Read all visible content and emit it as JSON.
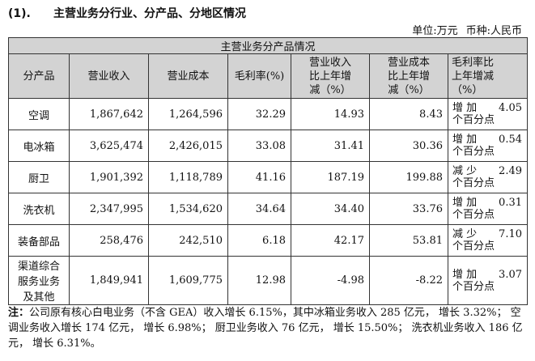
{
  "heading": {
    "number": "(1).",
    "title": "主营业务分行业、分产品、分地区情况"
  },
  "unit_line": {
    "unit": "单位:万元",
    "currency": "币种:人民币"
  },
  "table": {
    "title": "主营业务分产品情况",
    "headers": [
      [
        "分产品"
      ],
      [
        "营业收入"
      ],
      [
        "营业成本"
      ],
      [
        "毛利率(%)"
      ],
      [
        "营业收入",
        "比上年增",
        "减（%）"
      ],
      [
        "营业成本",
        "比上年增",
        "减（%）"
      ],
      [
        "毛利率比",
        "上年增减",
        "（%）"
      ]
    ],
    "rows": [
      {
        "name": [
          "空调"
        ],
        "revenue": "1,867,642",
        "cost": "1,264,596",
        "margin": "32.29",
        "rev_change": "14.93",
        "cost_change": "8.43",
        "margin_change": {
          "direction": "增 加",
          "value": "4.05",
          "unit": "个百分点"
        }
      },
      {
        "name": [
          "电冰箱"
        ],
        "revenue": "3,625,474",
        "cost": "2,426,015",
        "margin": "33.08",
        "rev_change": "31.41",
        "cost_change": "30.36",
        "margin_change": {
          "direction": "增 加",
          "value": "0.54",
          "unit": "个百分点"
        }
      },
      {
        "name": [
          "厨卫"
        ],
        "revenue": "1,901,392",
        "cost": "1,118,789",
        "margin": "41.16",
        "rev_change": "187.19",
        "cost_change": "199.88",
        "margin_change": {
          "direction": "减 少",
          "value": "2.49",
          "unit": "个百分点"
        }
      },
      {
        "name": [
          "洗衣机"
        ],
        "revenue": "2,347,995",
        "cost": "1,534,620",
        "margin": "34.64",
        "rev_change": "34.40",
        "cost_change": "33.76",
        "margin_change": {
          "direction": "增 加",
          "value": "0.31",
          "unit": "个百分点"
        }
      },
      {
        "name": [
          "装备部品"
        ],
        "revenue": "258,476",
        "cost": "242,510",
        "margin": "6.18",
        "rev_change": "42.17",
        "cost_change": "53.81",
        "margin_change": {
          "direction": "减 少",
          "value": "7.10",
          "unit": "个百分点"
        }
      },
      {
        "name": [
          "渠道综合",
          "服务业务",
          "及其他"
        ],
        "revenue": "1,849,941",
        "cost": "1,609,775",
        "margin": "12.98",
        "rev_change": "-4.98",
        "cost_change": "-8.22",
        "margin_change": {
          "direction": "增 加",
          "value": "3.07",
          "unit": "个百分点"
        }
      }
    ]
  },
  "note": {
    "label": "注：",
    "text": "公司原有核心白电业务（不含 GEA）收入增长 6.15%，其中冰箱业务收入 285 亿元， 增长 3.32%； 空调业务收入增长 174 亿元， 增长 6.98%； 厨卫业务收入 76 亿元， 增长 15.50%； 洗衣机业务收入 186 亿元， 增长 6.31%。"
  }
}
